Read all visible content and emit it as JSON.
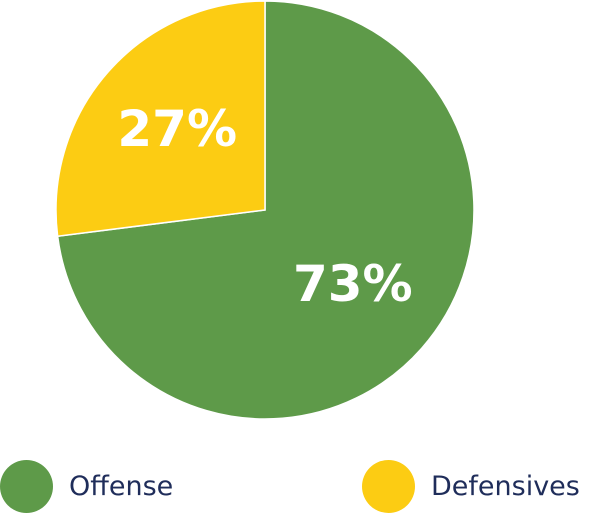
{
  "chart_data": {
    "type": "pie",
    "categories": [
      "Offense",
      "Defensives"
    ],
    "values": [
      73,
      27
    ],
    "value_labels": [
      "73%",
      "27%"
    ],
    "colors": [
      "#5e9a49",
      "#fccc13"
    ],
    "start_angle_deg": 0,
    "direction": "clockwise",
    "legend_position": "bottom"
  }
}
